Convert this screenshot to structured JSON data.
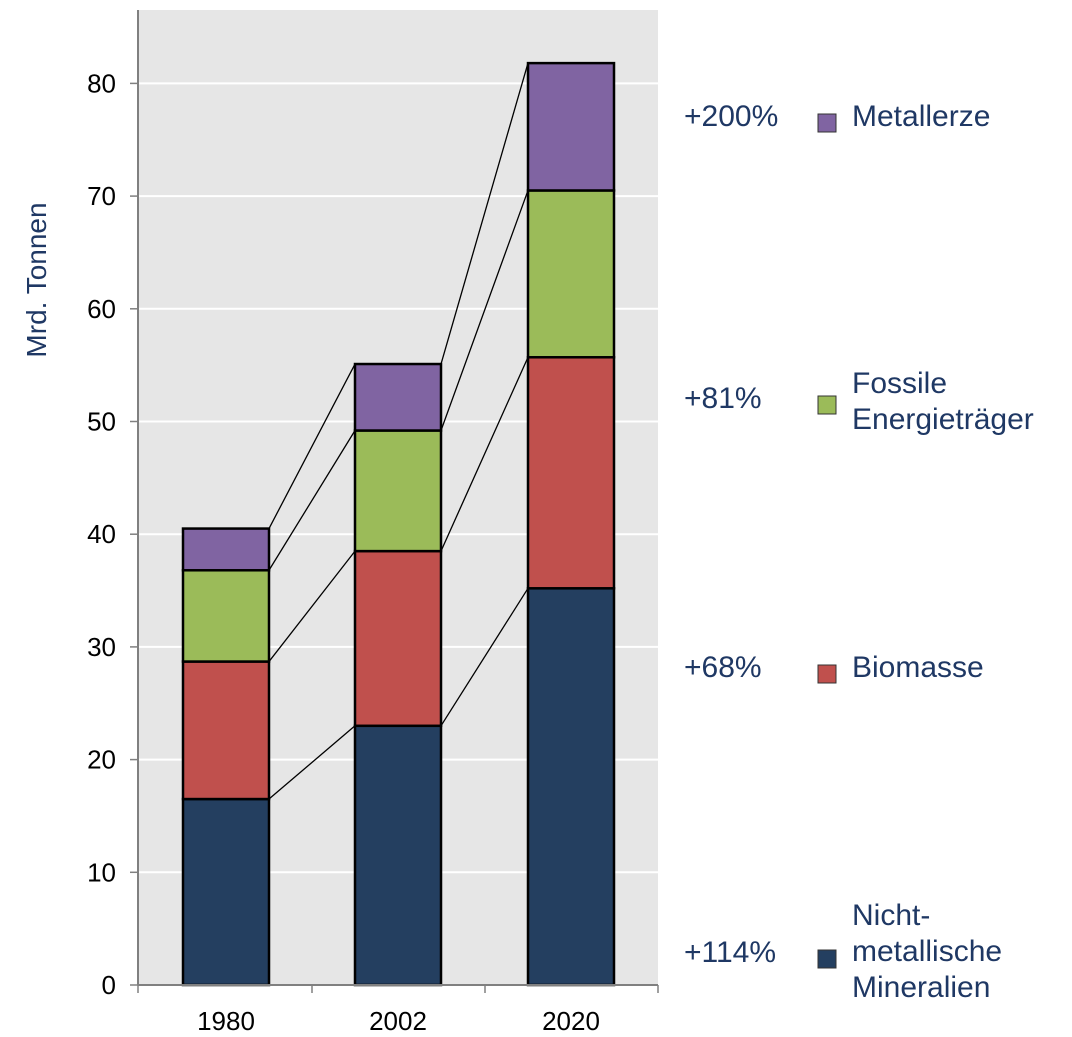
{
  "chart_data": {
    "type": "bar",
    "stacked": true,
    "categories": [
      "1980",
      "2002",
      "2020"
    ],
    "ylabel": "Mrd. Tonnen",
    "ylim": [
      0,
      85
    ],
    "yticks": [
      0,
      10,
      20,
      30,
      40,
      50,
      60,
      70,
      80
    ],
    "grid": true,
    "connector_lines": true,
    "legend_position": "right",
    "series": [
      {
        "name_lines": [
          "Nicht-",
          "metallische",
          "Mineralien"
        ],
        "values": [
          16.5,
          23,
          35.2
        ],
        "color": "#243f60",
        "change": "+114%"
      },
      {
        "name_lines": [
          "Biomasse"
        ],
        "values": [
          12.2,
          15.5,
          20.5
        ],
        "color": "#c0504d",
        "change": "+68%"
      },
      {
        "name_lines": [
          "Fossile",
          "Energieträger"
        ],
        "values": [
          8.1,
          10.7,
          14.8
        ],
        "color": "#9bbb59",
        "change": "+81%"
      },
      {
        "name_lines": [
          "Metallerze"
        ],
        "values": [
          3.7,
          5.9,
          11.3
        ],
        "color": "#8064a2",
        "change": "+200%"
      }
    ]
  },
  "colors": {
    "plot_background": "#e6e6e6",
    "grid": "#ffffff",
    "label_text": "#1f3864"
  }
}
